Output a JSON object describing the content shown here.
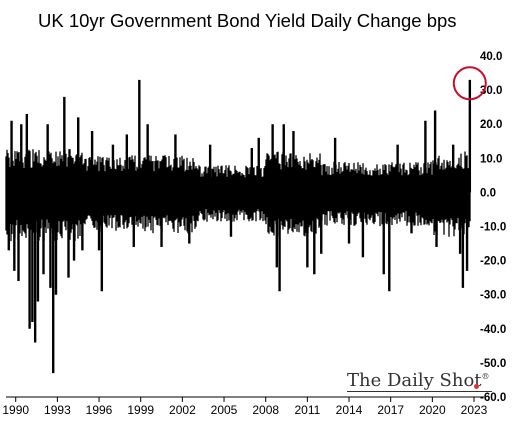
{
  "title": "UK 10yr Government Bond Yield Daily Change bps",
  "watermark": "The Daily Shot",
  "watermark_mark": "®",
  "highlight_color": "#c8102e",
  "bar_color": "#000000",
  "chart_data": {
    "type": "bar",
    "title": "UK 10yr Government Bond Yield Daily Change bps",
    "xlabel": "",
    "ylabel": "",
    "x_range": [
      1989.3,
      2023.0
    ],
    "ylim": [
      -60,
      40
    ],
    "y_ticks": [
      40,
      30,
      20,
      10,
      0,
      -10,
      -20,
      -30,
      -40,
      -50,
      -60
    ],
    "y_tick_labels": [
      "40.0",
      "30.0",
      "20.0",
      "10.0",
      "0.0",
      "-10.0",
      "-20.0",
      "-30.0",
      "-40.0",
      "-50.0",
      "-60.0"
    ],
    "x_ticks": [
      1990,
      1993,
      1996,
      1999,
      2002,
      2005,
      2008,
      2011,
      2014,
      2017,
      2020,
      2023
    ],
    "x_tick_labels": [
      "1990",
      "1993",
      "1996",
      "1999",
      "2002",
      "2005",
      "2008",
      "2011",
      "2014",
      "2017",
      "2020",
      "2023"
    ],
    "y_axis_position": "right",
    "grid": false,
    "series": [
      {
        "frequency": "daily",
        "notable_values": [
          {
            "x": 1989.5,
            "y": -17
          },
          {
            "x": 1989.7,
            "y": 21
          },
          {
            "x": 1989.9,
            "y": -23
          },
          {
            "x": 1990.2,
            "y": -26
          },
          {
            "x": 1990.4,
            "y": 20
          },
          {
            "x": 1990.8,
            "y": 23
          },
          {
            "x": 1991.0,
            "y": -40
          },
          {
            "x": 1991.2,
            "y": -38
          },
          {
            "x": 1991.4,
            "y": -44
          },
          {
            "x": 1991.6,
            "y": -32
          },
          {
            "x": 1992.0,
            "y": -24
          },
          {
            "x": 1992.3,
            "y": 20
          },
          {
            "x": 1992.5,
            "y": -28
          },
          {
            "x": 1992.7,
            "y": -53
          },
          {
            "x": 1992.9,
            "y": -30
          },
          {
            "x": 1993.5,
            "y": 28
          },
          {
            "x": 1993.8,
            "y": -25
          },
          {
            "x": 1994.2,
            "y": -20
          },
          {
            "x": 1994.5,
            "y": 22
          },
          {
            "x": 1994.8,
            "y": -17
          },
          {
            "x": 1995.5,
            "y": 18
          },
          {
            "x": 1996.0,
            "y": -17
          },
          {
            "x": 1996.2,
            "y": -29
          },
          {
            "x": 1997.0,
            "y": 14
          },
          {
            "x": 1998.0,
            "y": 17
          },
          {
            "x": 1998.5,
            "y": -16
          },
          {
            "x": 1998.9,
            "y": 33
          },
          {
            "x": 1999.5,
            "y": 20
          },
          {
            "x": 2000.5,
            "y": -16
          },
          {
            "x": 2001.5,
            "y": 17
          },
          {
            "x": 2002.5,
            "y": -15
          },
          {
            "x": 2004.0,
            "y": 14
          },
          {
            "x": 2005.5,
            "y": -13
          },
          {
            "x": 2007.0,
            "y": 13
          },
          {
            "x": 2007.5,
            "y": 16
          },
          {
            "x": 2008.5,
            "y": 20
          },
          {
            "x": 2008.8,
            "y": -22
          },
          {
            "x": 2009.0,
            "y": -29
          },
          {
            "x": 2009.3,
            "y": 20
          },
          {
            "x": 2010.0,
            "y": 18
          },
          {
            "x": 2011.0,
            "y": -22
          },
          {
            "x": 2011.5,
            "y": -24
          },
          {
            "x": 2012.0,
            "y": -18
          },
          {
            "x": 2013.0,
            "y": 16
          },
          {
            "x": 2014.0,
            "y": -15
          },
          {
            "x": 2015.0,
            "y": -19
          },
          {
            "x": 2016.5,
            "y": -24
          },
          {
            "x": 2016.9,
            "y": -29
          },
          {
            "x": 2017.5,
            "y": 14
          },
          {
            "x": 2018.5,
            "y": -12
          },
          {
            "x": 2019.5,
            "y": 21
          },
          {
            "x": 2020.2,
            "y": 24
          },
          {
            "x": 2020.3,
            "y": -16
          },
          {
            "x": 2021.5,
            "y": 14
          },
          {
            "x": 2022.0,
            "y": -18
          },
          {
            "x": 2022.2,
            "y": -28
          },
          {
            "x": 2022.5,
            "y": -23
          },
          {
            "x": 2022.7,
            "y": 33
          }
        ]
      }
    ],
    "annotations": [
      {
        "type": "circle",
        "x": 2022.7,
        "y": 32,
        "color": "#c8102e"
      }
    ]
  }
}
